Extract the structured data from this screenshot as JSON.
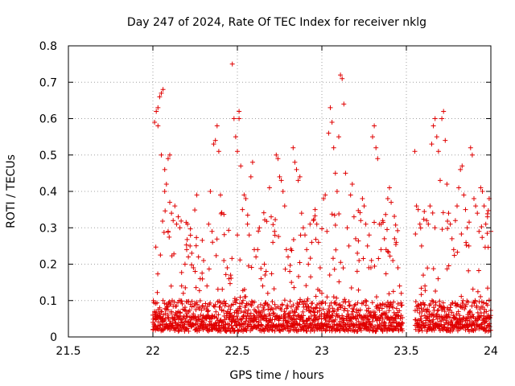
{
  "chart_data": {
    "type": "scatter",
    "title": "Day 247 of 2024, Rate Of TEC Index for receiver nklg",
    "xlabel": "GPS time / hours",
    "ylabel": "ROTI / TECUs",
    "xlim": [
      21.5,
      24
    ],
    "ylim": [
      0,
      0.8
    ],
    "x_ticks": [
      21.5,
      22,
      22.5,
      23,
      23.5,
      24
    ],
    "x_tick_labels": [
      "21.5",
      "22",
      "22.5",
      "23",
      "23.5",
      "24"
    ],
    "y_ticks": [
      0,
      0.1,
      0.2,
      0.3,
      0.4,
      0.5,
      0.6,
      0.7,
      0.8
    ],
    "y_tick_labels": [
      "0",
      "0.1",
      "0.2",
      "0.3",
      "0.4",
      "0.5",
      "0.6",
      "0.7",
      "0.8"
    ],
    "grid": true,
    "marker": "+",
    "color": "#e00000",
    "series": [
      {
        "name": "ROTI",
        "points": [
          [
            22.0,
            0.06
          ],
          [
            22.0,
            0.04
          ],
          [
            22.0,
            0.02
          ],
          [
            22.01,
            0.59
          ],
          [
            22.01,
            0.07
          ],
          [
            22.02,
            0.62
          ],
          [
            22.02,
            0.05
          ],
          [
            22.03,
            0.63
          ],
          [
            22.03,
            0.03
          ],
          [
            22.03,
            0.58
          ],
          [
            22.04,
            0.66
          ],
          [
            22.04,
            0.08
          ],
          [
            22.05,
            0.67
          ],
          [
            22.05,
            0.5
          ],
          [
            22.06,
            0.68
          ],
          [
            22.06,
            0.1
          ],
          [
            22.07,
            0.46
          ],
          [
            22.07,
            0.4
          ],
          [
            22.08,
            0.42
          ],
          [
            22.08,
            0.09
          ],
          [
            22.09,
            0.49
          ],
          [
            22.09,
            0.29
          ],
          [
            22.1,
            0.37
          ],
          [
            22.1,
            0.5
          ],
          [
            22.11,
            0.34
          ],
          [
            22.11,
            0.07
          ],
          [
            22.12,
            0.32
          ],
          [
            22.13,
            0.36
          ],
          [
            22.13,
            0.05
          ],
          [
            22.14,
            0.31
          ],
          [
            22.15,
            0.33
          ],
          [
            22.16,
            0.3
          ],
          [
            22.17,
            0.14
          ],
          [
            22.18,
            0.12
          ],
          [
            22.19,
            0.2
          ],
          [
            22.2,
            0.24
          ],
          [
            22.21,
            0.22
          ],
          [
            22.22,
            0.25
          ],
          [
            22.23,
            0.23
          ],
          [
            22.24,
            0.19
          ],
          [
            22.25,
            0.18
          ],
          [
            22.26,
            0.39
          ],
          [
            22.27,
            0.22
          ],
          [
            22.28,
            0.16
          ],
          [
            22.3,
            0.21
          ],
          [
            22.32,
            0.14
          ],
          [
            22.33,
            0.31
          ],
          [
            22.34,
            0.4
          ],
          [
            22.35,
            0.29
          ],
          [
            22.36,
            0.53
          ],
          [
            22.37,
            0.54
          ],
          [
            22.38,
            0.58
          ],
          [
            22.39,
            0.51
          ],
          [
            22.4,
            0.39
          ],
          [
            22.42,
            0.21
          ],
          [
            22.44,
            0.19
          ],
          [
            22.45,
            0.16
          ],
          [
            22.46,
            0.17
          ],
          [
            22.47,
            0.75
          ],
          [
            22.48,
            0.6
          ],
          [
            22.49,
            0.55
          ],
          [
            22.5,
            0.51
          ],
          [
            22.5,
            0.28
          ],
          [
            22.51,
            0.62
          ],
          [
            22.51,
            0.6
          ],
          [
            22.52,
            0.47
          ],
          [
            22.53,
            0.35
          ],
          [
            22.54,
            0.39
          ],
          [
            22.55,
            0.38
          ],
          [
            22.56,
            0.31
          ],
          [
            22.57,
            0.28
          ],
          [
            22.58,
            0.44
          ],
          [
            22.59,
            0.48
          ],
          [
            22.6,
            0.24
          ],
          [
            22.61,
            0.22
          ],
          [
            22.62,
            0.24
          ],
          [
            22.63,
            0.3
          ],
          [
            22.64,
            0.16
          ],
          [
            22.65,
            0.14
          ],
          [
            22.66,
            0.2
          ],
          [
            22.67,
            0.18
          ],
          [
            22.68,
            0.12
          ],
          [
            22.69,
            0.41
          ],
          [
            22.7,
            0.33
          ],
          [
            22.71,
            0.26
          ],
          [
            22.72,
            0.29
          ],
          [
            22.73,
            0.5
          ],
          [
            22.74,
            0.49
          ],
          [
            22.75,
            0.44
          ],
          [
            22.76,
            0.43
          ],
          [
            22.77,
            0.4
          ],
          [
            22.78,
            0.36
          ],
          [
            22.79,
            0.24
          ],
          [
            22.8,
            0.22
          ],
          [
            22.81,
            0.18
          ],
          [
            22.82,
            0.15
          ],
          [
            22.83,
            0.52
          ],
          [
            22.84,
            0.48
          ],
          [
            22.85,
            0.46
          ],
          [
            22.86,
            0.43
          ],
          [
            22.87,
            0.44
          ],
          [
            22.88,
            0.34
          ],
          [
            22.89,
            0.3
          ],
          [
            22.9,
            0.28
          ],
          [
            22.91,
            0.24
          ],
          [
            22.92,
            0.2
          ],
          [
            22.93,
            0.31
          ],
          [
            22.94,
            0.26
          ],
          [
            22.95,
            0.32
          ],
          [
            22.96,
            0.35
          ],
          [
            22.97,
            0.31
          ],
          [
            22.98,
            0.26
          ],
          [
            22.99,
            0.19
          ],
          [
            23.0,
            0.12
          ],
          [
            23.01,
            0.38
          ],
          [
            23.02,
            0.39
          ],
          [
            23.03,
            0.29
          ],
          [
            23.04,
            0.56
          ],
          [
            23.05,
            0.63
          ],
          [
            23.06,
            0.59
          ],
          [
            23.07,
            0.52
          ],
          [
            23.08,
            0.45
          ],
          [
            23.09,
            0.4
          ],
          [
            23.1,
            0.55
          ],
          [
            23.11,
            0.72
          ],
          [
            23.12,
            0.71
          ],
          [
            23.13,
            0.64
          ],
          [
            23.14,
            0.45
          ],
          [
            23.15,
            0.3
          ],
          [
            23.16,
            0.25
          ],
          [
            23.17,
            0.39
          ],
          [
            23.18,
            0.42
          ],
          [
            23.19,
            0.33
          ],
          [
            23.2,
            0.27
          ],
          [
            23.21,
            0.23
          ],
          [
            23.22,
            0.21
          ],
          [
            23.23,
            0.32
          ],
          [
            23.24,
            0.38
          ],
          [
            23.25,
            0.36
          ],
          [
            23.26,
            0.31
          ],
          [
            23.27,
            0.25
          ],
          [
            23.28,
            0.28
          ],
          [
            23.29,
            0.19
          ],
          [
            23.3,
            0.55
          ],
          [
            23.31,
            0.58
          ],
          [
            23.32,
            0.52
          ],
          [
            23.33,
            0.49
          ],
          [
            23.34,
            0.31
          ],
          [
            23.35,
            0.24
          ],
          [
            23.36,
            0.32
          ],
          [
            23.37,
            0.27
          ],
          [
            23.38,
            0.24
          ],
          [
            23.39,
            0.38
          ],
          [
            23.4,
            0.41
          ],
          [
            23.41,
            0.37
          ],
          [
            23.42,
            0.21
          ],
          [
            23.43,
            0.27
          ],
          [
            23.44,
            0.26
          ],
          [
            23.45,
            0.19
          ],
          [
            23.46,
            0.14
          ],
          [
            23.47,
            0.12
          ],
          [
            23.55,
            0.51
          ],
          [
            23.56,
            0.36
          ],
          [
            23.57,
            0.35
          ],
          [
            23.58,
            0.31
          ],
          [
            23.59,
            0.25
          ],
          [
            23.6,
            0.17
          ],
          [
            23.61,
            0.14
          ],
          [
            23.62,
            0.32
          ],
          [
            23.63,
            0.31
          ],
          [
            23.64,
            0.36
          ],
          [
            23.65,
            0.53
          ],
          [
            23.66,
            0.58
          ],
          [
            23.67,
            0.6
          ],
          [
            23.68,
            0.55
          ],
          [
            23.69,
            0.51
          ],
          [
            23.7,
            0.43
          ],
          [
            23.71,
            0.6
          ],
          [
            23.72,
            0.62
          ],
          [
            23.73,
            0.54
          ],
          [
            23.74,
            0.42
          ],
          [
            23.75,
            0.34
          ],
          [
            23.76,
            0.31
          ],
          [
            23.77,
            0.27
          ],
          [
            23.78,
            0.24
          ],
          [
            23.79,
            0.32
          ],
          [
            23.8,
            0.36
          ],
          [
            23.81,
            0.41
          ],
          [
            23.82,
            0.46
          ],
          [
            23.83,
            0.47
          ],
          [
            23.84,
            0.39
          ],
          [
            23.85,
            0.35
          ],
          [
            23.86,
            0.3
          ],
          [
            23.87,
            0.25
          ],
          [
            23.88,
            0.52
          ],
          [
            23.89,
            0.5
          ],
          [
            23.9,
            0.38
          ],
          [
            23.91,
            0.36
          ],
          [
            23.92,
            0.34
          ],
          [
            23.93,
            0.29
          ],
          [
            23.94,
            0.41
          ],
          [
            23.95,
            0.4
          ],
          [
            23.96,
            0.36
          ],
          [
            23.97,
            0.31
          ],
          [
            23.98,
            0.33
          ],
          [
            23.99,
            0.38
          ],
          [
            24.0,
            0.29
          ]
        ]
      }
    ],
    "background_band": {
      "segments": [
        [
          22.0,
          23.48
        ],
        [
          23.55,
          24.0
        ]
      ],
      "y_range": [
        0.01,
        0.12
      ]
    }
  }
}
